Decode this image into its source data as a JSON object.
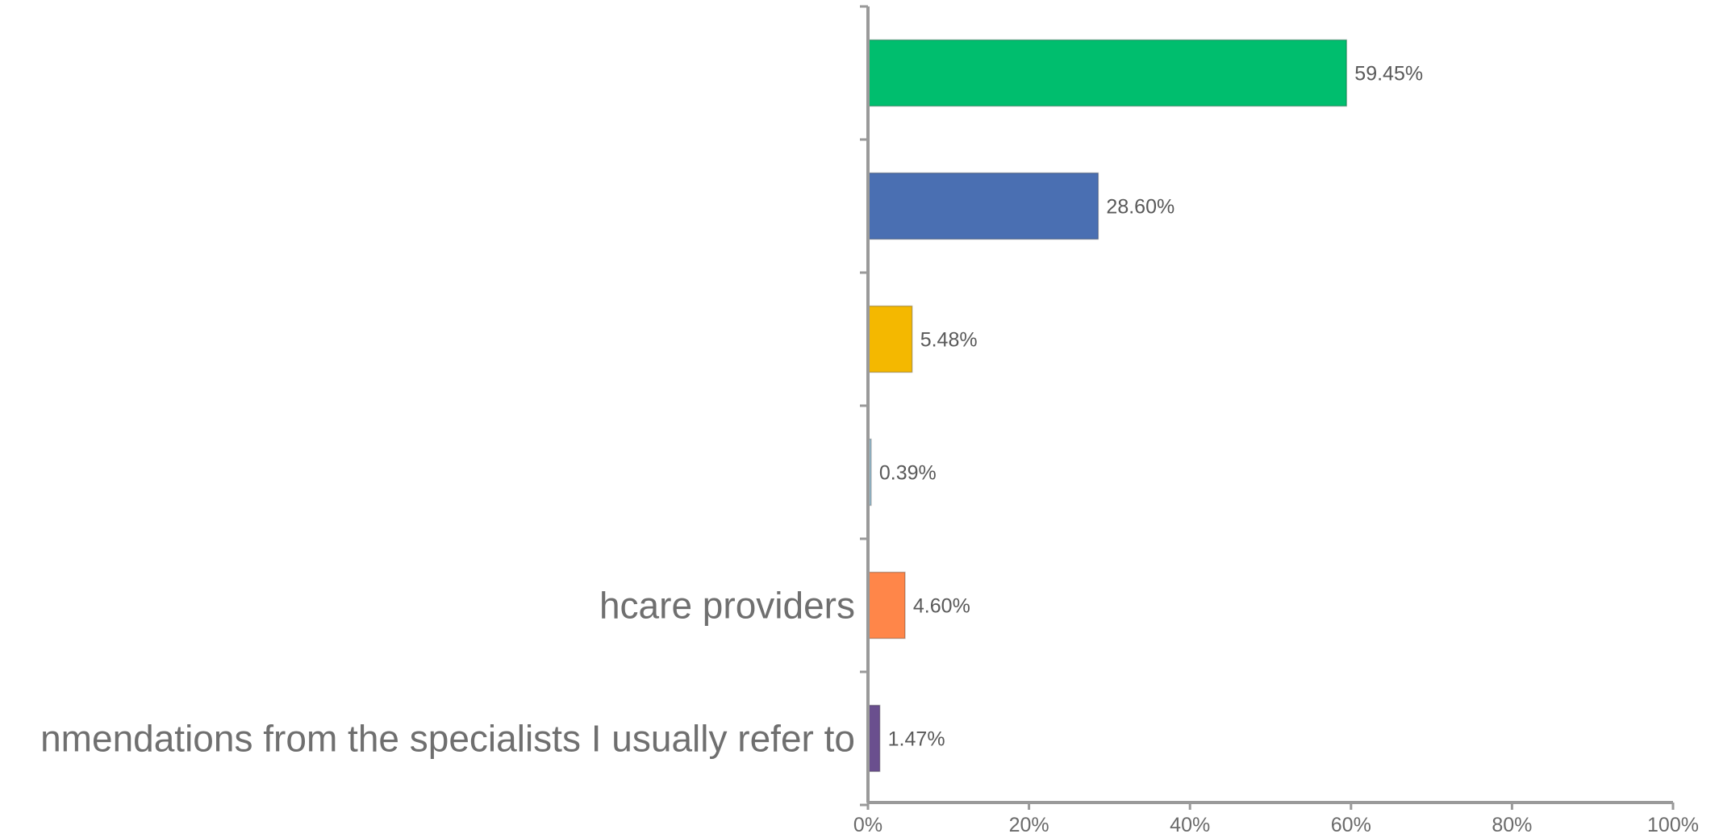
{
  "chart_data": {
    "type": "bar",
    "orientation": "horizontal",
    "categories": [
      "",
      "",
      "",
      "",
      "hcare providers",
      "nmendations from the specialists I usually refer to"
    ],
    "values": [
      59.45,
      28.6,
      5.48,
      0.39,
      4.6,
      1.47
    ],
    "value_labels": [
      "59.45%",
      "28.60%",
      "5.48%",
      "0.39%",
      "4.60%",
      "1.47%"
    ],
    "colors": [
      "#00be6e",
      "#4a6fb2",
      "#f4b800",
      "#9cc3d5",
      "#ff8649",
      "#6a4f8e"
    ],
    "xlim": [
      0,
      100
    ],
    "x_ticks": [
      "0%",
      "20%",
      "40%",
      "60%",
      "80%",
      "100%"
    ],
    "title": "",
    "xlabel": "",
    "ylabel": "",
    "grid": false,
    "legend": "none"
  }
}
